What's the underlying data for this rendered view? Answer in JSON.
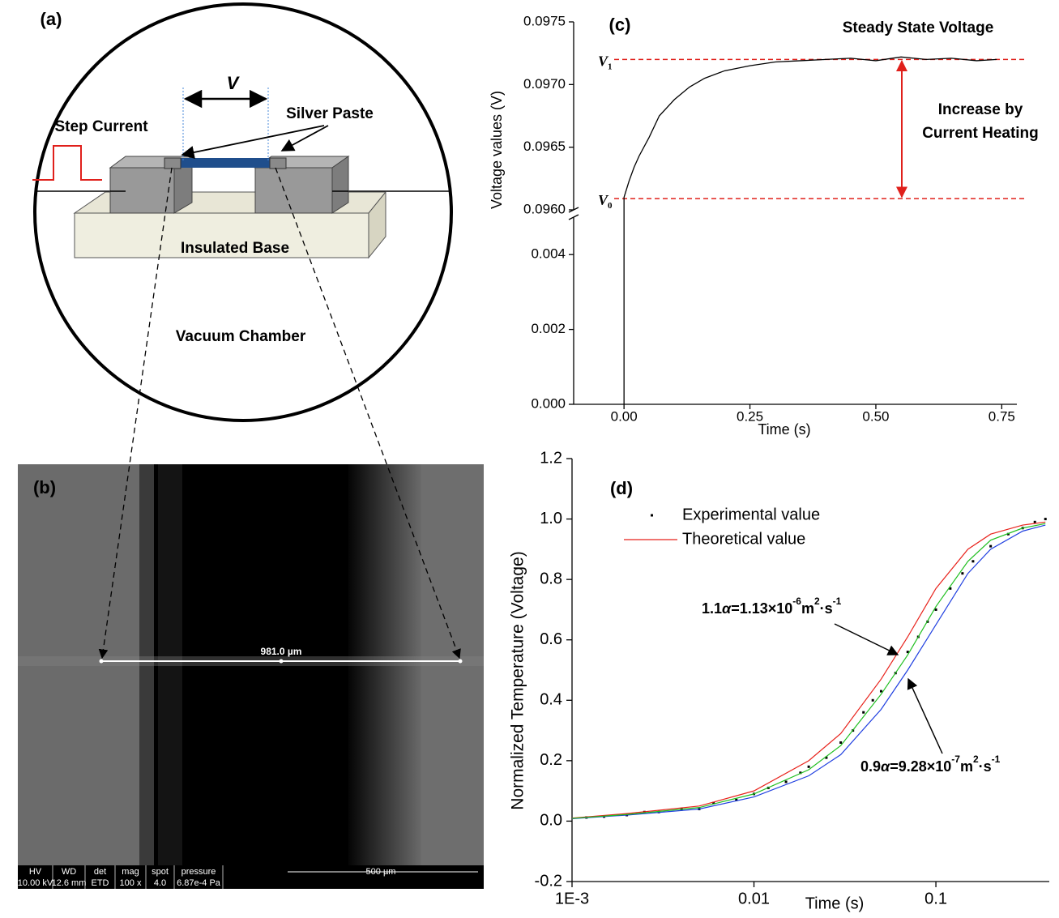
{
  "panel_a": {
    "label": "(a)",
    "voltage": "V",
    "step_current": "Step Current",
    "silver_paste": "Silver Paste",
    "base": "Insulated Base",
    "chamber": "Vacuum Chamber"
  },
  "panel_b": {
    "label": "(b)",
    "measurement": "981.0 µm",
    "info_bar": {
      "headers": [
        "HV",
        "WD",
        "det",
        "mag",
        "spot",
        "pressure"
      ],
      "values": [
        "10.00 kV",
        "12.6 mm",
        "ETD",
        "100 x",
        "4.0",
        "6.87e-4 Pa"
      ],
      "scale_bar": "500 µm"
    }
  },
  "chart_data": [
    {
      "type": "line",
      "panel": "(c)",
      "xlabel": "Time (s)",
      "ylabel": "Voltage values (V)",
      "xlim": [
        -0.1,
        0.78
      ],
      "xticks": [
        {
          "value": 0,
          "label": "0.00"
        },
        0.25,
        {
          "value": 0.5,
          "label": "0.50"
        },
        0.75
      ],
      "ylim": [
        0,
        0.005
      ],
      "yticks": [
        {
          "value": 0,
          "label": "0.000"
        },
        0.002,
        0.004
      ],
      "ylim_upper": [
        0.096,
        0.0975
      ],
      "yticks_upper": [
        {
          "value": 0.096,
          "label": "0.0960"
        },
        0.0965,
        {
          "value": 0.097,
          "label": "0.0970"
        },
        0.0975
      ],
      "series": [
        {
          "color": "#000000",
          "x": [
            0,
            0,
            0.01,
            0.02,
            0.03,
            0.05,
            0.07,
            0.1,
            0.13,
            0.16,
            0.2,
            0.25,
            0.3,
            0.35,
            0.4,
            0.45,
            0.5,
            0.55,
            0.6,
            0.65,
            0.7,
            0.74
          ],
          "values": [
            0,
            0.0961,
            0.09623,
            0.09634,
            0.09643,
            0.09658,
            0.09675,
            0.09688,
            0.09698,
            0.09705,
            0.09711,
            0.09715,
            0.09718,
            0.09719,
            0.0972,
            0.09721,
            0.09719,
            0.09722,
            0.0972,
            0.09721,
            0.09719,
            0.0972
          ]
        }
      ],
      "reference_color": "#e0201b",
      "reference_lines": [
        {
          "value": 0.0972,
          "label": "V",
          "subscript": "1"
        },
        {
          "value": 0.09609,
          "label": "V",
          "subscript": "0"
        }
      ],
      "annotations": {
        "steady": "Steady State Voltage",
        "increase": [
          "Increase by",
          "Current Heating"
        ]
      }
    },
    {
      "type": "line",
      "panel": "(d)",
      "xlabel": "Time (s)",
      "ylabel": "Normalized Temperature (Voltage)",
      "log_x": true,
      "xlim": [
        0.001,
        0.42
      ],
      "xticks": [
        {
          "value": 0.001,
          "label": "1E-3"
        },
        0.01,
        0.1
      ],
      "ylim": [
        -0.2,
        1.2
      ],
      "yticks": [
        -0.2,
        {
          "value": 0,
          "label": "0.0"
        },
        0.2,
        0.4,
        0.6,
        0.8,
        {
          "value": 1,
          "label": "1.0"
        },
        1.2
      ],
      "legend": "upper left",
      "series": [
        {
          "name": "Experimental value",
          "style": "points",
          "color": "#000000",
          "x": [
            0.0012,
            0.0015,
            0.002,
            0.0025,
            0.003,
            0.004,
            0.005,
            0.006,
            0.008,
            0.01,
            0.012,
            0.015,
            0.018,
            0.02,
            0.025,
            0.03,
            0.035,
            0.04,
            0.045,
            0.05,
            0.06,
            0.07,
            0.08,
            0.09,
            0.1,
            0.12,
            0.14,
            0.16,
            0.2,
            0.25,
            0.3,
            0.35,
            0.4
          ],
          "values": [
            0.012,
            0.015,
            0.02,
            0.03,
            0.03,
            0.04,
            0.04,
            0.06,
            0.07,
            0.09,
            0.11,
            0.13,
            0.16,
            0.18,
            0.21,
            0.26,
            0.3,
            0.36,
            0.4,
            0.43,
            0.49,
            0.56,
            0.61,
            0.66,
            0.7,
            0.77,
            0.82,
            0.86,
            0.91,
            0.95,
            0.97,
            0.99,
            1.0
          ]
        },
        {
          "name": "Theoretical value",
          "color": "#e8221b",
          "x": [
            0.001,
            0.002,
            0.005,
            0.01,
            0.02,
            0.03,
            0.05,
            0.07,
            0.1,
            0.15,
            0.2,
            0.3,
            0.4
          ],
          "values": [
            0.01,
            0.025,
            0.05,
            0.1,
            0.2,
            0.29,
            0.47,
            0.61,
            0.77,
            0.9,
            0.95,
            0.98,
            0.99
          ]
        },
        {
          "color": "#1f3fe0",
          "x": [
            0.001,
            0.002,
            0.005,
            0.01,
            0.02,
            0.03,
            0.05,
            0.07,
            0.1,
            0.15,
            0.2,
            0.3,
            0.4
          ],
          "values": [
            0.008,
            0.02,
            0.04,
            0.08,
            0.15,
            0.22,
            0.37,
            0.5,
            0.65,
            0.82,
            0.9,
            0.96,
            0.98
          ]
        },
        {
          "color": "#1fbf1f",
          "x": [
            0.001,
            0.002,
            0.005,
            0.01,
            0.02,
            0.03,
            0.05,
            0.07,
            0.1,
            0.15,
            0.2,
            0.3,
            0.4
          ],
          "values": [
            0.009,
            0.022,
            0.045,
            0.09,
            0.17,
            0.25,
            0.42,
            0.55,
            0.71,
            0.86,
            0.93,
            0.97,
            0.985
          ]
        }
      ],
      "annotations": [
        {
          "segments": [
            {
              "text": "1.1"
            },
            {
              "text": "α",
              "italic": true
            },
            {
              "text": "=1.13×10"
            },
            {
              "text": "-6",
              "sup": true
            },
            {
              "text": "m"
            },
            {
              "text": "2",
              "sup": true
            },
            {
              "text": "·s"
            },
            {
              "text": "-1",
              "sup": true
            }
          ]
        },
        {
          "segments": [
            {
              "text": "0.9"
            },
            {
              "text": "α",
              "italic": true
            },
            {
              "text": "=9.28×10"
            },
            {
              "text": "-7",
              "sup": true
            },
            {
              "text": "m"
            },
            {
              "text": "2",
              "sup": true
            },
            {
              "text": "·s"
            },
            {
              "text": "-1",
              "sup": true
            }
          ]
        }
      ]
    }
  ]
}
